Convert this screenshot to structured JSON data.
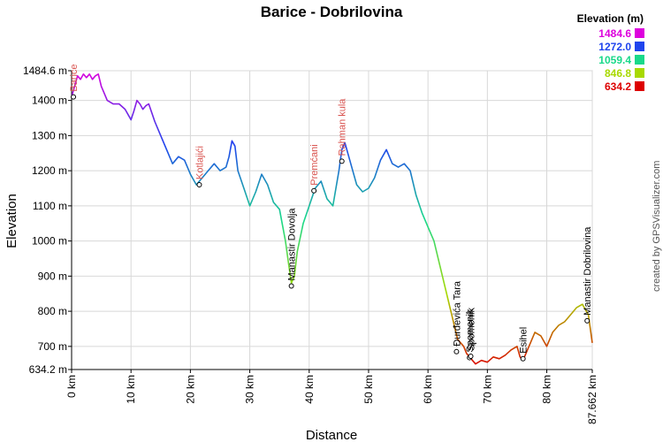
{
  "chart_data": {
    "type": "line",
    "title": "Barice - Dobrilovina",
    "xlabel": "Distance",
    "ylabel": "Elevation",
    "xlim": [
      0,
      87.662
    ],
    "ylim": [
      634.2,
      1484.6
    ],
    "x_ticks": [
      {
        "value": 0,
        "label": "0 km"
      },
      {
        "value": 10,
        "label": "10 km"
      },
      {
        "value": 20,
        "label": "20 km"
      },
      {
        "value": 30,
        "label": "30 km"
      },
      {
        "value": 40,
        "label": "40 km"
      },
      {
        "value": 50,
        "label": "50 km"
      },
      {
        "value": 60,
        "label": "60 km"
      },
      {
        "value": 70,
        "label": "70 km"
      },
      {
        "value": 80,
        "label": "80 km"
      },
      {
        "value": 87.662,
        "label": "87.662 km"
      }
    ],
    "y_ticks": [
      {
        "value": 634.2,
        "label": "634.2 m"
      },
      {
        "value": 700,
        "label": "700 m"
      },
      {
        "value": 800,
        "label": "800 m"
      },
      {
        "value": 900,
        "label": "900 m"
      },
      {
        "value": 1000,
        "label": "1000 m"
      },
      {
        "value": 1100,
        "label": "1100 m"
      },
      {
        "value": 1200,
        "label": "1200 m"
      },
      {
        "value": 1300,
        "label": "1300 m"
      },
      {
        "value": 1400,
        "label": "1400 m"
      },
      {
        "value": 1484.6,
        "label": "1484.6 m"
      }
    ],
    "grid": true,
    "legend": {
      "title": "Elevation (m)",
      "position": "top-right",
      "entries": [
        {
          "label": "1484.6",
          "color": "#dd00dd"
        },
        {
          "label": "1272.0",
          "color": "#1f44ee"
        },
        {
          "label": "1059.4",
          "color": "#19d98a"
        },
        {
          "label": "846.8",
          "color": "#a8d900"
        },
        {
          "label": "634.2",
          "color": "#dd0000"
        }
      ]
    },
    "series": [
      {
        "x": [
          0,
          0.5,
          1,
          1.5,
          2,
          2.5,
          3,
          3.5,
          4,
          4.5,
          5,
          5.5,
          6,
          7,
          8,
          9,
          10,
          10.5,
          11,
          11.5,
          12,
          12.5,
          13,
          14,
          15,
          16,
          17,
          18,
          19,
          20,
          21,
          22,
          23,
          24,
          25,
          26,
          26.5,
          27,
          27.5,
          28,
          29,
          30,
          31,
          32,
          33,
          34,
          35,
          36,
          36.5,
          37,
          37.5,
          38,
          39,
          40,
          41,
          42,
          43,
          44,
          45,
          45.5,
          46,
          47,
          48,
          49,
          50,
          51,
          52,
          53,
          54,
          55,
          56,
          57,
          58,
          59,
          60,
          61,
          62,
          63,
          64,
          65,
          66,
          66.5,
          67,
          67.5,
          68,
          69,
          70,
          71,
          72,
          73,
          74,
          75,
          75.5,
          76,
          77,
          78,
          79,
          80,
          81,
          82,
          83,
          84,
          85,
          86,
          87,
          87.662
        ],
        "y": [
          1410,
          1440,
          1470,
          1460,
          1475,
          1465,
          1475,
          1460,
          1470,
          1475,
          1440,
          1420,
          1400,
          1390,
          1390,
          1375,
          1345,
          1370,
          1400,
          1390,
          1375,
          1385,
          1390,
          1340,
          1300,
          1260,
          1220,
          1240,
          1230,
          1190,
          1160,
          1180,
          1200,
          1220,
          1200,
          1210,
          1240,
          1285,
          1270,
          1200,
          1150,
          1100,
          1140,
          1190,
          1160,
          1110,
          1090,
          1000,
          940,
          880,
          900,
          970,
          1050,
          1100,
          1150,
          1170,
          1120,
          1100,
          1200,
          1260,
          1280,
          1220,
          1160,
          1140,
          1150,
          1180,
          1230,
          1260,
          1220,
          1210,
          1220,
          1200,
          1130,
          1080,
          1040,
          1000,
          930,
          860,
          790,
          720,
          700,
          680,
          670,
          660,
          650,
          660,
          655,
          670,
          665,
          675,
          690,
          700,
          670,
          660,
          700,
          740,
          730,
          700,
          740,
          760,
          770,
          790,
          810,
          820,
          790,
          710
        ]
      }
    ],
    "waypoints": [
      {
        "name": "Barice",
        "x": 0.3,
        "y": 1410
      },
      {
        "name": "Kotlajići",
        "x": 21.5,
        "y": 1160
      },
      {
        "name": "Manastir Dovolja",
        "x": 37,
        "y": 872
      },
      {
        "name": "Premćani",
        "x": 40.8,
        "y": 1143
      },
      {
        "name": "Rahman kula",
        "x": 45.5,
        "y": 1227
      },
      {
        "name": "Đurđevića Tara",
        "x": 64.8,
        "y": 685
      },
      {
        "name": "Spomenik",
        "x": 67,
        "y": 668
      },
      {
        "name": "Spomenik",
        "x": 67.2,
        "y": 672
      },
      {
        "name": "Esihel",
        "x": 76,
        "y": 665
      },
      {
        "name": "Manastir Dobrilovina",
        "x": 86.8,
        "y": 773
      }
    ]
  },
  "credit": "created by GPSVisualizer.com"
}
